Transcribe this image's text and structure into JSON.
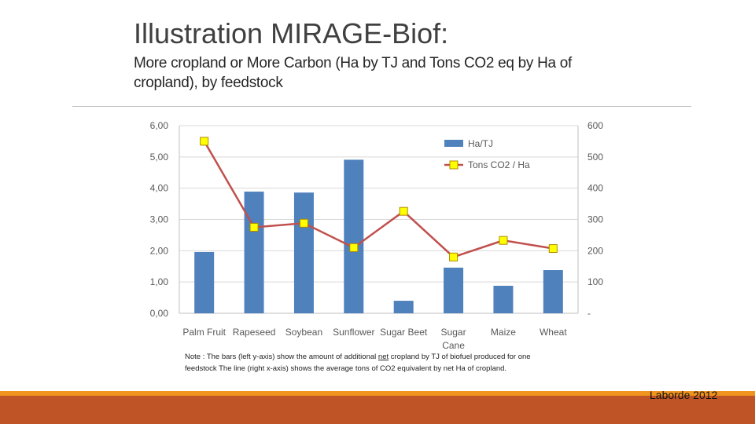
{
  "slide": {
    "title": "Illustration MIRAGE-Biof:",
    "subtitle": "More cropland or More Carbon (Ha by TJ and Tons CO2 eq by Ha of cropland), by feedstock",
    "note_before": "Note : The bars (left y-axis) show the amount of additional ",
    "note_underlined": "net",
    "note_after": " cropland by TJ of biofuel produced for one feedstock The line (right x-axis) shows the average tons of CO2 equivalent by net Ha of cropland.",
    "attribution": "Laborde 2012"
  },
  "colors": {
    "bars": "#4f81bd",
    "line": "#c0504d",
    "marker_fill": "#ffff00",
    "marker_edge": "#b08a00",
    "orange_bar": "#f0941e",
    "footer": "#bf5427"
  },
  "chart_data": {
    "type": "bar",
    "categories": [
      "Palm Fruit",
      "Rapeseed",
      "Soybean",
      "Sunflower",
      "Sugar Beet",
      "Sugar Cane",
      "Maize",
      "Wheat"
    ],
    "category_labels": [
      [
        "Palm Fruit"
      ],
      [
        "Rapeseed"
      ],
      [
        "Soybean"
      ],
      [
        "Sunflower"
      ],
      [
        "Sugar Beet"
      ],
      [
        "Sugar",
        "Cane"
      ],
      [
        "Maize"
      ],
      [
        "Wheat"
      ]
    ],
    "series": [
      {
        "name": "Ha/TJ",
        "type": "bar",
        "axis": "left",
        "values": [
          1.96,
          3.89,
          3.86,
          4.91,
          0.4,
          1.46,
          0.88,
          1.38
        ]
      },
      {
        "name": "Tons CO2 / Ha",
        "type": "line",
        "axis": "right",
        "values": [
          550,
          275,
          288,
          210,
          326,
          180,
          233,
          207
        ]
      }
    ],
    "left_axis": {
      "min": 0,
      "max": 6,
      "ticks": [
        "0,00",
        "1,00",
        "2,00",
        "3,00",
        "4,00",
        "5,00",
        "6,00"
      ]
    },
    "right_axis": {
      "min": 0,
      "max": 600,
      "ticks": [
        "-",
        "100",
        "200",
        "300",
        "400",
        "500",
        "600"
      ]
    },
    "legend_position": "top-right",
    "grid": true
  }
}
